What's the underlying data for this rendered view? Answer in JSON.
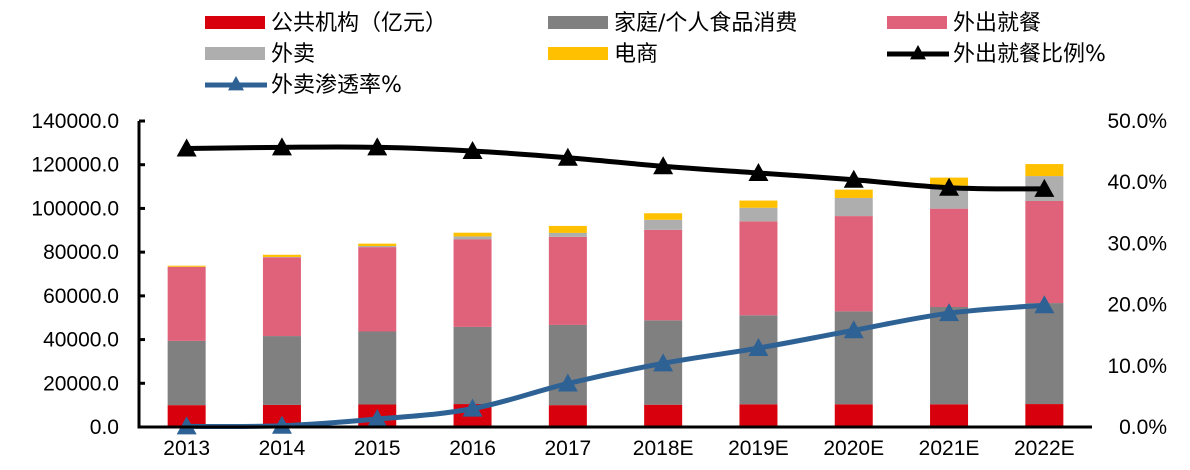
{
  "chart_data": {
    "type": "bar",
    "stacked": true,
    "title": "",
    "xlabel": "",
    "ylabel": "",
    "y2label": "",
    "categories": [
      "2013",
      "2014",
      "2015",
      "2016",
      "2017",
      "2018E",
      "2019E",
      "2020E",
      "2021E",
      "2022E"
    ],
    "ylim": [
      0,
      140000
    ],
    "yticks": [
      "0.0",
      "20000.0",
      "40000.0",
      "60000.0",
      "80000.0",
      "100000.0",
      "120000.0",
      "140000.0"
    ],
    "y2lim": [
      0,
      0.5
    ],
    "y2ticks": [
      "0.0%",
      "10.0%",
      "20.0%",
      "30.0%",
      "40.0%",
      "50.0%"
    ],
    "grid": false,
    "legend_position": "top",
    "series": [
      {
        "name": "公共机构（亿元）",
        "kind": "bar",
        "color": "#D9000D",
        "values": [
          10000,
          10100,
          10300,
          10500,
          10000,
          10200,
          10400,
          10400,
          10400,
          10500
        ]
      },
      {
        "name": "家庭/个人食品消费",
        "kind": "bar",
        "color": "#808080",
        "values": [
          29400,
          31500,
          33400,
          35300,
          36700,
          38600,
          40700,
          42500,
          44500,
          46200
        ]
      },
      {
        "name": "外出就餐",
        "kind": "bar",
        "color": "#E0627A",
        "values": [
          33800,
          36000,
          38600,
          40000,
          40300,
          41400,
          43000,
          43600,
          45000,
          46700
        ]
      },
      {
        "name": "外卖",
        "kind": "bar",
        "color": "#AEAEAE",
        "values": [
          100,
          200,
          500,
          1400,
          1800,
          4600,
          6200,
          8300,
          10500,
          11400
        ]
      },
      {
        "name": "电商",
        "kind": "bar",
        "color": "#FFC000",
        "values": [
          500,
          1000,
          1100,
          1700,
          3200,
          3000,
          3300,
          3800,
          3700,
          5500
        ]
      },
      {
        "name": "外出就餐比例%",
        "kind": "line",
        "axis": "right",
        "color": "#000000",
        "marker": "triangle",
        "values": [
          0.455,
          0.457,
          0.457,
          0.451,
          0.44,
          0.426,
          0.415,
          0.404,
          0.391,
          0.389
        ]
      },
      {
        "name": "外卖渗透率%",
        "kind": "line",
        "axis": "right",
        "color": "#2E6295",
        "marker": "triangle",
        "values": [
          0.001,
          0.002,
          0.013,
          0.03,
          0.071,
          0.104,
          0.129,
          0.158,
          0.186,
          0.199
        ]
      }
    ]
  },
  "legend": {
    "items": [
      {
        "label": "公共机构（亿元）",
        "type": "bar",
        "color": "#D9000D"
      },
      {
        "label": "家庭/个人食品消费",
        "type": "bar",
        "color": "#808080"
      },
      {
        "label": "外出就餐",
        "type": "bar",
        "color": "#E0627A"
      },
      {
        "label": "外卖",
        "type": "bar",
        "color": "#AEAEAE"
      },
      {
        "label": "电商",
        "type": "bar",
        "color": "#FFC000"
      },
      {
        "label": "外出就餐比例%",
        "type": "line",
        "color": "#000000"
      },
      {
        "label": "外卖渗透率%",
        "type": "line",
        "color": "#2E6295"
      }
    ]
  }
}
